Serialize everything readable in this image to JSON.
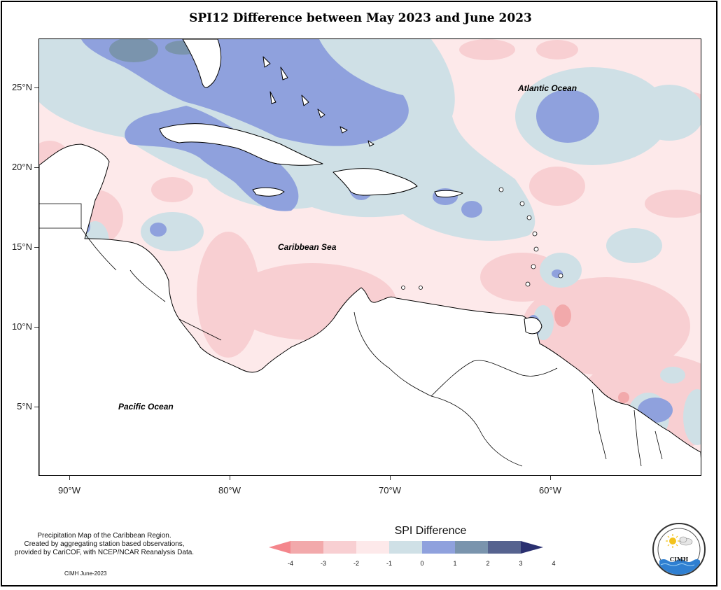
{
  "title": "SPI12 Difference between May 2023 and June 2023",
  "axes": {
    "y_ticks": [
      "25°N",
      "20°N",
      "15°N",
      "10°N",
      "5°N"
    ],
    "x_ticks": [
      "90°W",
      "80°W",
      "70°W",
      "60°W"
    ]
  },
  "map_labels": {
    "atlantic": "Atlantic Ocean",
    "caribbean": "Caribbean Sea",
    "pacific": "Pacific Ocean"
  },
  "notes": {
    "lines": [
      "Precipitation Map of the Caribbean Region.",
      "Created by aggregating station based observations,",
      "provided by CariCOF, with NCEP/NCAR Reanalysis Data."
    ],
    "credit": "CIMH June-2023"
  },
  "legend": {
    "title": "SPI Difference",
    "ticks": [
      "-4",
      "-3",
      "-2",
      "-1",
      "0",
      "1",
      "2",
      "3",
      "4"
    ],
    "colors": [
      "#f4868c",
      "#f2a9ab",
      "#f8cfd2",
      "#fde9ea",
      "#cfe0e6",
      "#8fa1dd",
      "#7a94ad",
      "#56638f",
      "#2a3070"
    ]
  },
  "logo": {
    "text": "CIMH",
    "name": "cimh-logo"
  }
}
